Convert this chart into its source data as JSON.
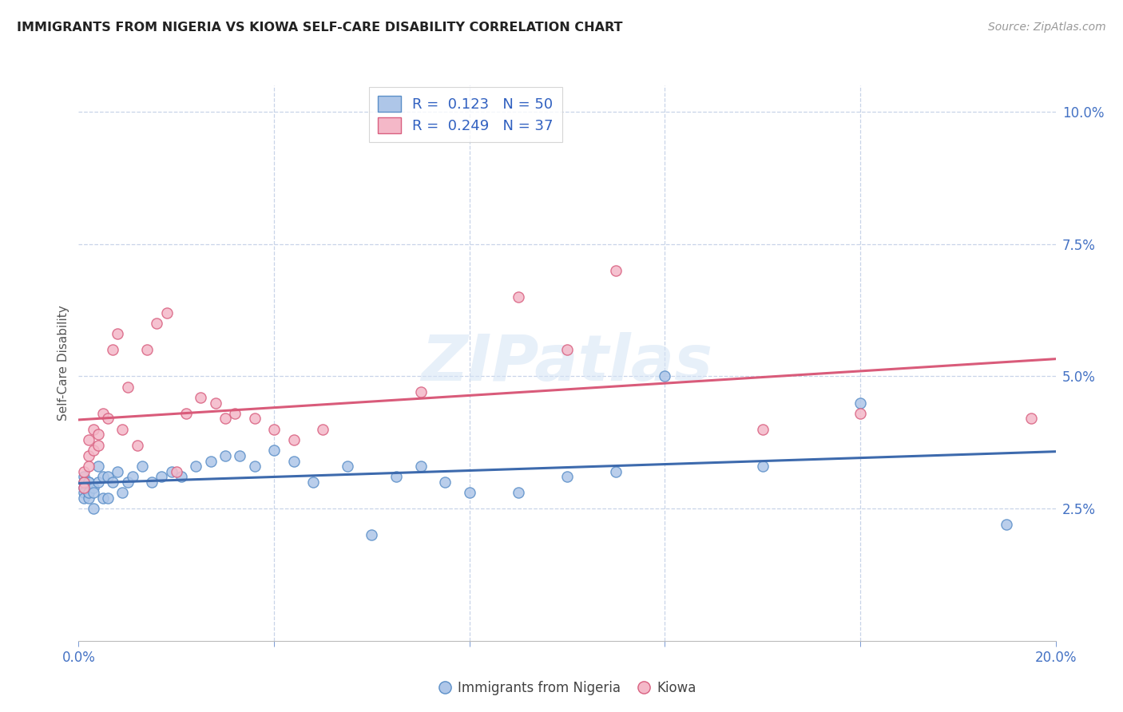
{
  "title": "IMMIGRANTS FROM NIGERIA VS KIOWA SELF-CARE DISABILITY CORRELATION CHART",
  "source": "Source: ZipAtlas.com",
  "ylabel": "Self-Care Disability",
  "xlim": [
    0.0,
    0.2
  ],
  "ylim": [
    0.0,
    0.105
  ],
  "xticks": [
    0.0,
    0.04,
    0.08,
    0.12,
    0.16,
    0.2
  ],
  "xticklabels": [
    "0.0%",
    "",
    "",
    "",
    "",
    "20.0%"
  ],
  "yticks_right": [
    0.025,
    0.05,
    0.075,
    0.1
  ],
  "yticklabels_right": [
    "2.5%",
    "5.0%",
    "7.5%",
    "10.0%"
  ],
  "legend_labels": [
    "Immigrants from Nigeria",
    "Kiowa"
  ],
  "legend_r": [
    "0.123",
    "0.249"
  ],
  "legend_n": [
    "50",
    "37"
  ],
  "color_nigeria": "#aec6e8",
  "color_kiowa": "#f4b8c8",
  "line_color_nigeria": "#3d6aad",
  "line_color_kiowa": "#d95b7a",
  "marker_edge_nigeria": "#5b8fc8",
  "marker_edge_kiowa": "#d96080",
  "background_color": "#ffffff",
  "grid_color": "#c8d4e8",
  "watermark": "ZIPatlas",
  "nigeria_x": [
    0.001,
    0.001,
    0.001,
    0.001,
    0.001,
    0.002,
    0.002,
    0.002,
    0.002,
    0.002,
    0.003,
    0.003,
    0.003,
    0.004,
    0.004,
    0.005,
    0.005,
    0.006,
    0.006,
    0.007,
    0.008,
    0.009,
    0.01,
    0.011,
    0.013,
    0.015,
    0.017,
    0.019,
    0.021,
    0.024,
    0.027,
    0.03,
    0.033,
    0.036,
    0.04,
    0.044,
    0.048,
    0.055,
    0.06,
    0.065,
    0.07,
    0.075,
    0.08,
    0.09,
    0.1,
    0.11,
    0.12,
    0.14,
    0.16,
    0.19
  ],
  "nigeria_y": [
    0.029,
    0.028,
    0.027,
    0.031,
    0.03,
    0.028,
    0.03,
    0.027,
    0.03,
    0.028,
    0.029,
    0.025,
    0.028,
    0.03,
    0.033,
    0.027,
    0.031,
    0.027,
    0.031,
    0.03,
    0.032,
    0.028,
    0.03,
    0.031,
    0.033,
    0.03,
    0.031,
    0.032,
    0.031,
    0.033,
    0.034,
    0.035,
    0.035,
    0.033,
    0.036,
    0.034,
    0.03,
    0.033,
    0.02,
    0.031,
    0.033,
    0.03,
    0.028,
    0.028,
    0.031,
    0.032,
    0.05,
    0.033,
    0.045,
    0.022
  ],
  "kiowa_x": [
    0.001,
    0.001,
    0.001,
    0.002,
    0.002,
    0.002,
    0.003,
    0.003,
    0.004,
    0.004,
    0.005,
    0.006,
    0.007,
    0.008,
    0.009,
    0.01,
    0.012,
    0.014,
    0.016,
    0.018,
    0.02,
    0.022,
    0.025,
    0.028,
    0.03,
    0.032,
    0.036,
    0.04,
    0.044,
    0.05,
    0.07,
    0.09,
    0.1,
    0.11,
    0.14,
    0.16,
    0.195
  ],
  "kiowa_y": [
    0.03,
    0.032,
    0.029,
    0.035,
    0.038,
    0.033,
    0.04,
    0.036,
    0.039,
    0.037,
    0.043,
    0.042,
    0.055,
    0.058,
    0.04,
    0.048,
    0.037,
    0.055,
    0.06,
    0.062,
    0.032,
    0.043,
    0.046,
    0.045,
    0.042,
    0.043,
    0.042,
    0.04,
    0.038,
    0.04,
    0.047,
    0.065,
    0.055,
    0.07,
    0.04,
    0.043,
    0.042
  ]
}
